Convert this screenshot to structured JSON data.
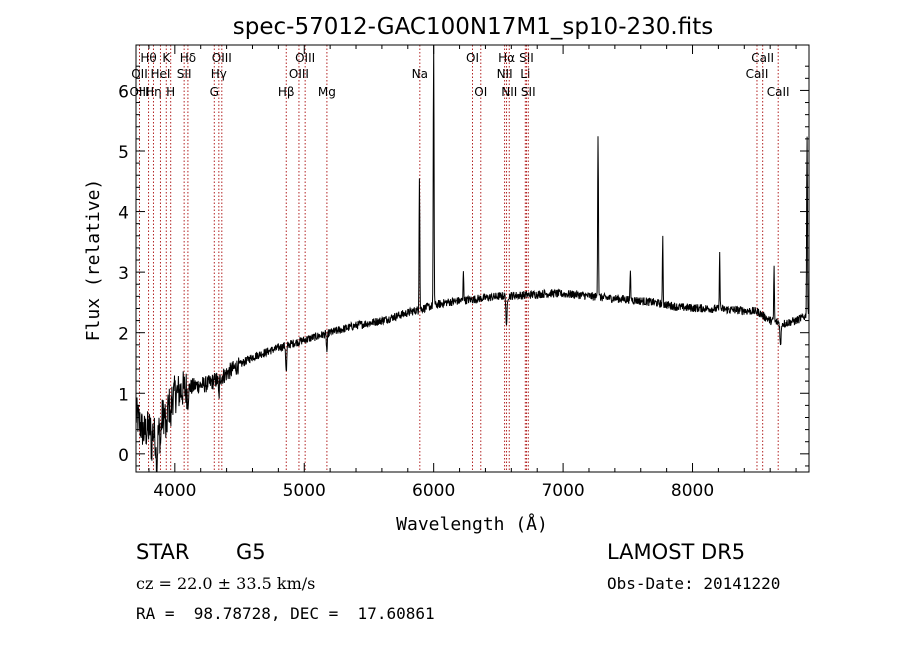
{
  "chart_data": {
    "type": "line",
    "title": "spec-57012-GAC100N17M1_sp10-230.fits",
    "xlabel": "Wavelength (Å)",
    "ylabel": "Flux (relative)",
    "xlim": [
      3700,
      8900
    ],
    "ylim": [
      -0.3,
      6.75
    ],
    "x_ticks": [
      4000,
      5000,
      6000,
      7000,
      8000
    ],
    "y_ticks": [
      0,
      1,
      2,
      3,
      4,
      5,
      6
    ],
    "grid": false,
    "line_color": "#000000",
    "marker_color": "#b22222",
    "spectrum_anchors": [
      [
        3700,
        0.65
      ],
      [
        3760,
        0.35
      ],
      [
        3820,
        0.45
      ],
      [
        3860,
        0.2
      ],
      [
        3900,
        0.6
      ],
      [
        3940,
        0.7
      ],
      [
        3980,
        0.95
      ],
      [
        4050,
        1.05
      ],
      [
        4150,
        1.12
      ],
      [
        4250,
        1.15
      ],
      [
        4350,
        1.25
      ],
      [
        4450,
        1.4
      ],
      [
        4600,
        1.6
      ],
      [
        4800,
        1.75
      ],
      [
        5000,
        1.88
      ],
      [
        5200,
        2.0
      ],
      [
        5400,
        2.12
      ],
      [
        5600,
        2.2
      ],
      [
        5800,
        2.33
      ],
      [
        5950,
        2.42
      ],
      [
        6100,
        2.5
      ],
      [
        6300,
        2.55
      ],
      [
        6500,
        2.6
      ],
      [
        6700,
        2.62
      ],
      [
        6900,
        2.65
      ],
      [
        7100,
        2.63
      ],
      [
        7300,
        2.58
      ],
      [
        7500,
        2.55
      ],
      [
        7700,
        2.5
      ],
      [
        7900,
        2.42
      ],
      [
        8100,
        2.4
      ],
      [
        8300,
        2.38
      ],
      [
        8500,
        2.35
      ],
      [
        8600,
        2.2
      ],
      [
        8700,
        2.15
      ],
      [
        8800,
        2.2
      ],
      [
        8900,
        2.3
      ]
    ],
    "emission_features": [
      {
        "x": 5890,
        "peak": 5.1,
        "width": 3
      },
      {
        "x": 6000,
        "peak": 6.75,
        "width": 3
      },
      {
        "x": 6230,
        "peak": 3.05,
        "width": 2.5
      },
      {
        "x": 7270,
        "peak": 5.3,
        "width": 3
      },
      {
        "x": 7520,
        "peak": 3.05,
        "width": 2.5
      },
      {
        "x": 7770,
        "peak": 3.6,
        "width": 2.5
      },
      {
        "x": 8210,
        "peak": 3.4,
        "width": 2.5
      },
      {
        "x": 8630,
        "peak": 3.1,
        "width": 2.5
      },
      {
        "x": 8885,
        "peak": 5.3,
        "width": 3
      }
    ],
    "absorption_features": [
      {
        "x": 3820,
        "depth": 0.35,
        "width": 4
      },
      {
        "x": 3860,
        "depth": 0.5,
        "width": 4
      },
      {
        "x": 3890,
        "depth": 0.3,
        "width": 4
      },
      {
        "x": 3934,
        "depth": 0.45,
        "width": 4
      },
      {
        "x": 3968,
        "depth": 0.35,
        "width": 4
      },
      {
        "x": 4101,
        "depth": 0.25,
        "width": 4
      },
      {
        "x": 4340,
        "depth": 0.3,
        "width": 4
      },
      {
        "x": 4861,
        "depth": 0.45,
        "width": 4
      },
      {
        "x": 5175,
        "depth": 0.3,
        "width": 4
      },
      {
        "x": 5890,
        "depth": 0.5,
        "width": 4
      },
      {
        "x": 6563,
        "depth": 0.55,
        "width": 4
      },
      {
        "x": 8680,
        "depth": 0.4,
        "width": 4
      }
    ],
    "line_markers": [
      {
        "label": "Hθ",
        "x": 3797,
        "row": 0
      },
      {
        "label": "OII",
        "x": 3727,
        "row": 1
      },
      {
        "label": "OIII",
        "x": 3727,
        "row": 2
      },
      {
        "label": "Hη",
        "x": 3835,
        "row": 2
      },
      {
        "label": "HeI",
        "x": 3889,
        "row": 1
      },
      {
        "label": "K",
        "x": 3934,
        "row": 0
      },
      {
        "label": "H",
        "x": 3968,
        "row": 2
      },
      {
        "label": "Hδ",
        "x": 4101,
        "row": 0
      },
      {
        "label": "SII",
        "x": 4072,
        "row": 1
      },
      {
        "label": "OIII",
        "x": 4363,
        "row": 0
      },
      {
        "label": "Hγ",
        "x": 4340,
        "row": 1
      },
      {
        "label": "G",
        "x": 4305,
        "row": 2
      },
      {
        "label": "OIII",
        "x": 5007,
        "row": 0
      },
      {
        "label": "OIII",
        "x": 4959,
        "row": 1
      },
      {
        "label": "Hβ",
        "x": 4861,
        "row": 2
      },
      {
        "label": "Mg",
        "x": 5175,
        "row": 2
      },
      {
        "label": "Na",
        "x": 5893,
        "row": 1
      },
      {
        "label": "OI",
        "x": 6300,
        "row": 0
      },
      {
        "label": "OI",
        "x": 6364,
        "row": 2
      },
      {
        "label": "Hα",
        "x": 6563,
        "row": 0
      },
      {
        "label": "NII",
        "x": 6548,
        "row": 1
      },
      {
        "label": "NII",
        "x": 6584,
        "row": 2
      },
      {
        "label": "SII",
        "x": 6717,
        "row": 0
      },
      {
        "label": "Li",
        "x": 6708,
        "row": 1
      },
      {
        "label": "SII",
        "x": 6731,
        "row": 2
      },
      {
        "label": "CaII",
        "x": 8542,
        "row": 0
      },
      {
        "label": "CaII",
        "x": 8498,
        "row": 1
      },
      {
        "label": "CaII",
        "x": 8662,
        "row": 2
      }
    ]
  },
  "info": {
    "object_class": "STAR",
    "subclass": "G5",
    "survey": "LAMOST DR5",
    "cz": "cz = 22.0 ± 33.5 km/s",
    "obs_date": "Obs-Date: 20141220",
    "coords": "RA =  98.78728, DEC =  17.60861"
  }
}
